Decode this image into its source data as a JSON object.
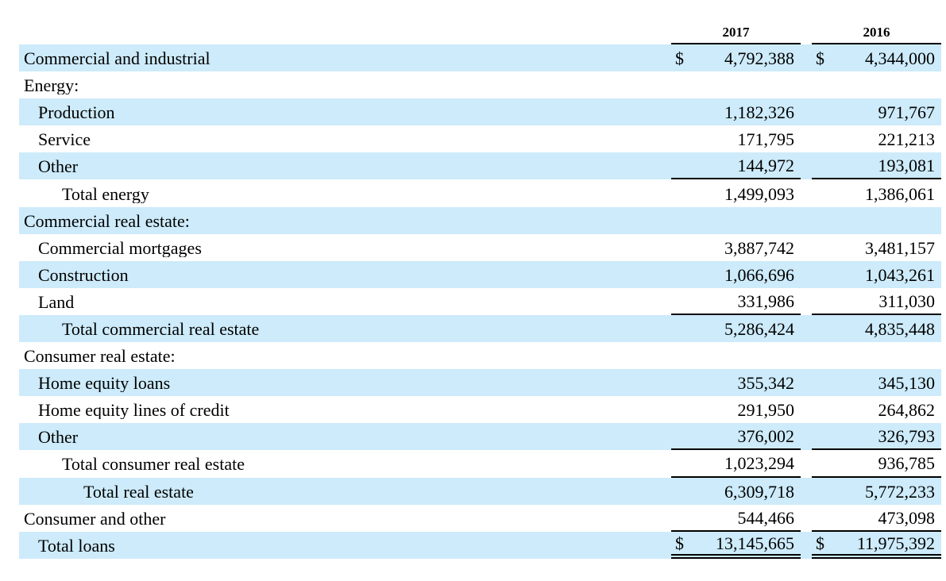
{
  "table": {
    "dollar_symbol": "$",
    "columns": [
      "2017",
      "2016"
    ],
    "rows": [
      {
        "label": "Commercial and industrial",
        "indent": 0,
        "shaded": true,
        "dollar": true,
        "v2017": "4,792,388",
        "v2016": "4,344,000",
        "border": "none"
      },
      {
        "label": "Energy:",
        "indent": 0,
        "shaded": false,
        "dollar": false,
        "v2017": "",
        "v2016": "",
        "border": "none"
      },
      {
        "label": "Production",
        "indent": 1,
        "shaded": true,
        "dollar": false,
        "v2017": "1,182,326",
        "v2016": "971,767",
        "border": "none"
      },
      {
        "label": "Service",
        "indent": 1,
        "shaded": false,
        "dollar": false,
        "v2017": "171,795",
        "v2016": "221,213",
        "border": "none"
      },
      {
        "label": "Other",
        "indent": 1,
        "shaded": true,
        "dollar": false,
        "v2017": "144,972",
        "v2016": "193,081",
        "border": "single"
      },
      {
        "label": "Total energy",
        "indent": 2,
        "shaded": false,
        "dollar": false,
        "v2017": "1,499,093",
        "v2016": "1,386,061",
        "border": "none"
      },
      {
        "label": "Commercial real estate:",
        "indent": 0,
        "shaded": true,
        "dollar": false,
        "v2017": "",
        "v2016": "",
        "border": "none"
      },
      {
        "label": "Commercial mortgages",
        "indent": 1,
        "shaded": false,
        "dollar": false,
        "v2017": "3,887,742",
        "v2016": "3,481,157",
        "border": "none"
      },
      {
        "label": "Construction",
        "indent": 1,
        "shaded": true,
        "dollar": false,
        "v2017": "1,066,696",
        "v2016": "1,043,261",
        "border": "none"
      },
      {
        "label": "Land",
        "indent": 1,
        "shaded": false,
        "dollar": false,
        "v2017": "331,986",
        "v2016": "311,030",
        "border": "single"
      },
      {
        "label": "Total commercial real estate",
        "indent": 2,
        "shaded": true,
        "dollar": false,
        "v2017": "5,286,424",
        "v2016": "4,835,448",
        "border": "none"
      },
      {
        "label": "Consumer real estate:",
        "indent": 0,
        "shaded": false,
        "dollar": false,
        "v2017": "",
        "v2016": "",
        "border": "none"
      },
      {
        "label": "Home equity loans",
        "indent": 1,
        "shaded": true,
        "dollar": false,
        "v2017": "355,342",
        "v2016": "345,130",
        "border": "none"
      },
      {
        "label": "Home equity lines of credit",
        "indent": 1,
        "shaded": false,
        "dollar": false,
        "v2017": "291,950",
        "v2016": "264,862",
        "border": "none"
      },
      {
        "label": "Other",
        "indent": 1,
        "shaded": true,
        "dollar": false,
        "v2017": "376,002",
        "v2016": "326,793",
        "border": "single"
      },
      {
        "label": "Total consumer real estate",
        "indent": 2,
        "shaded": false,
        "dollar": false,
        "v2017": "1,023,294",
        "v2016": "936,785",
        "border": "single"
      },
      {
        "label": "Total real estate",
        "indent": 3,
        "shaded": true,
        "dollar": false,
        "v2017": "6,309,718",
        "v2016": "5,772,233",
        "border": "none"
      },
      {
        "label": "Consumer and other",
        "indent": 0,
        "shaded": false,
        "dollar": false,
        "v2017": "544,466",
        "v2016": "473,098",
        "border": "single"
      },
      {
        "label": "Total loans",
        "indent": 1,
        "shaded": true,
        "dollar": true,
        "v2017": "13,145,665",
        "v2016": "11,975,392",
        "border": "double"
      }
    ]
  },
  "colors": {
    "row_highlight": "#cdebfa",
    "text": "#000000",
    "rule": "#000000"
  }
}
